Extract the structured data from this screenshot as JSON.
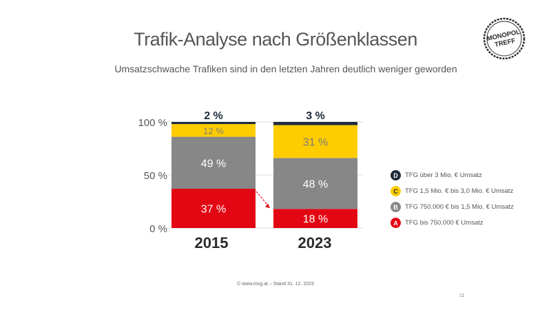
{
  "title": "Trafik-Analyse nach Größenklassen",
  "subtitle": "Umsatzschwache Trafiken sind in den letzten Jahren deutlich weniger geworden",
  "logo": {
    "line1": "MONOPOL",
    "line2": "TREFF"
  },
  "footer": "© www.mvg.at – Stand 31. 12. 2023",
  "page_number": "11",
  "colors": {
    "A": "#e30613",
    "B": "#878787",
    "C": "#ffcc00",
    "D": "#1d2b3a"
  },
  "chart_data": {
    "type": "bar",
    "stacked": true,
    "categories": [
      "2015",
      "2023"
    ],
    "series": [
      {
        "name": "TFG bis 750.000 € Umsatz",
        "key": "A",
        "values": [
          37,
          18
        ],
        "labels": [
          "37 %",
          "18 %"
        ]
      },
      {
        "name": "TFG 750.000 € bis 1,5 Mio. € Umsatz",
        "key": "B",
        "values": [
          49,
          48
        ],
        "labels": [
          "49 %",
          "48 %"
        ]
      },
      {
        "name": "TFG 1,5 Mio. € bis 3,0 Mio. € Umsatz",
        "key": "C",
        "values": [
          12,
          31
        ],
        "labels": [
          "12 %",
          "31 %"
        ]
      },
      {
        "name": "TFG über 3 Mio. € Umsatz",
        "key": "D",
        "values": [
          2,
          3
        ],
        "labels": [
          "2 %",
          "3 %"
        ]
      }
    ],
    "y_ticks": [
      "0 %",
      "50 %",
      "100 %"
    ],
    "y_tick_values": [
      0,
      50,
      100
    ],
    "ylim": [
      0,
      100
    ],
    "legend_position": "right",
    "legend_order": [
      "D",
      "C",
      "B",
      "A"
    ],
    "annotation": "red dashed arrow from the 2015 A segment to the 2023 A segment"
  }
}
